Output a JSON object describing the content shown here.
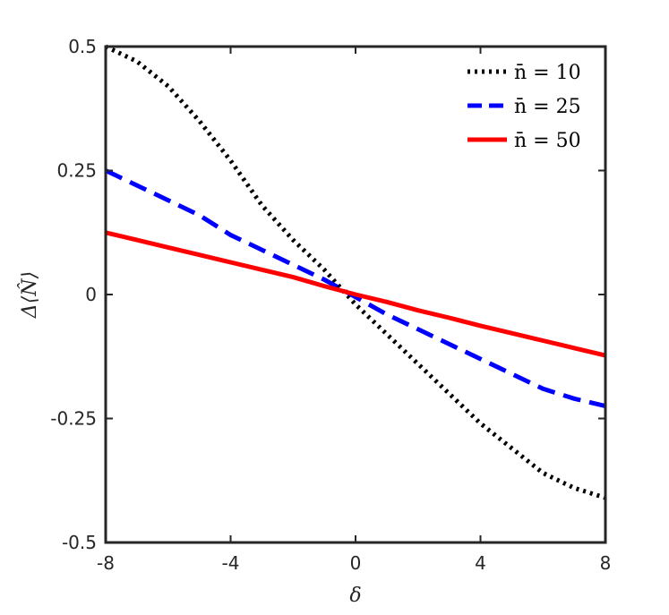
{
  "chart_data": {
    "type": "line",
    "title": "",
    "xlabel": "δ",
    "ylabel": "Δ⟨N̂⟩",
    "xlim": [
      -8,
      8
    ],
    "ylim": [
      -0.5,
      0.5
    ],
    "xticks": [
      "-8",
      "-4",
      "0",
      "4",
      "8"
    ],
    "yticks": [
      "0.5",
      "0.25",
      "0",
      "-0.25",
      "-0.5"
    ],
    "grid": false,
    "legend_position": "top-right",
    "x": [
      -8,
      -7,
      -6,
      -5,
      -4,
      -3,
      -2,
      -1,
      0,
      1,
      2,
      3,
      4,
      5,
      6,
      7,
      8
    ],
    "series": [
      {
        "name": "n̄ = 10",
        "color": "#000000",
        "style": "dotted",
        "values": [
          0.5,
          0.47,
          0.42,
          0.35,
          0.27,
          0.18,
          0.11,
          0.05,
          -0.02,
          -0.08,
          -0.14,
          -0.2,
          -0.26,
          -0.31,
          -0.36,
          -0.39,
          -0.41
        ]
      },
      {
        "name": "n̄ = 25",
        "color": "#0000ff",
        "style": "dashed",
        "values": [
          0.25,
          0.22,
          0.19,
          0.16,
          0.12,
          0.09,
          0.06,
          0.03,
          -0.005,
          -0.04,
          -0.07,
          -0.1,
          -0.13,
          -0.16,
          -0.19,
          -0.21,
          -0.225
        ]
      },
      {
        "name": "n̄ = 50",
        "color": "#ff0000",
        "style": "solid",
        "values": [
          0.125,
          0.11,
          0.095,
          0.08,
          0.065,
          0.05,
          0.035,
          0.017,
          0.0,
          -0.015,
          -0.032,
          -0.047,
          -0.063,
          -0.078,
          -0.093,
          -0.108,
          -0.123
        ]
      }
    ]
  }
}
